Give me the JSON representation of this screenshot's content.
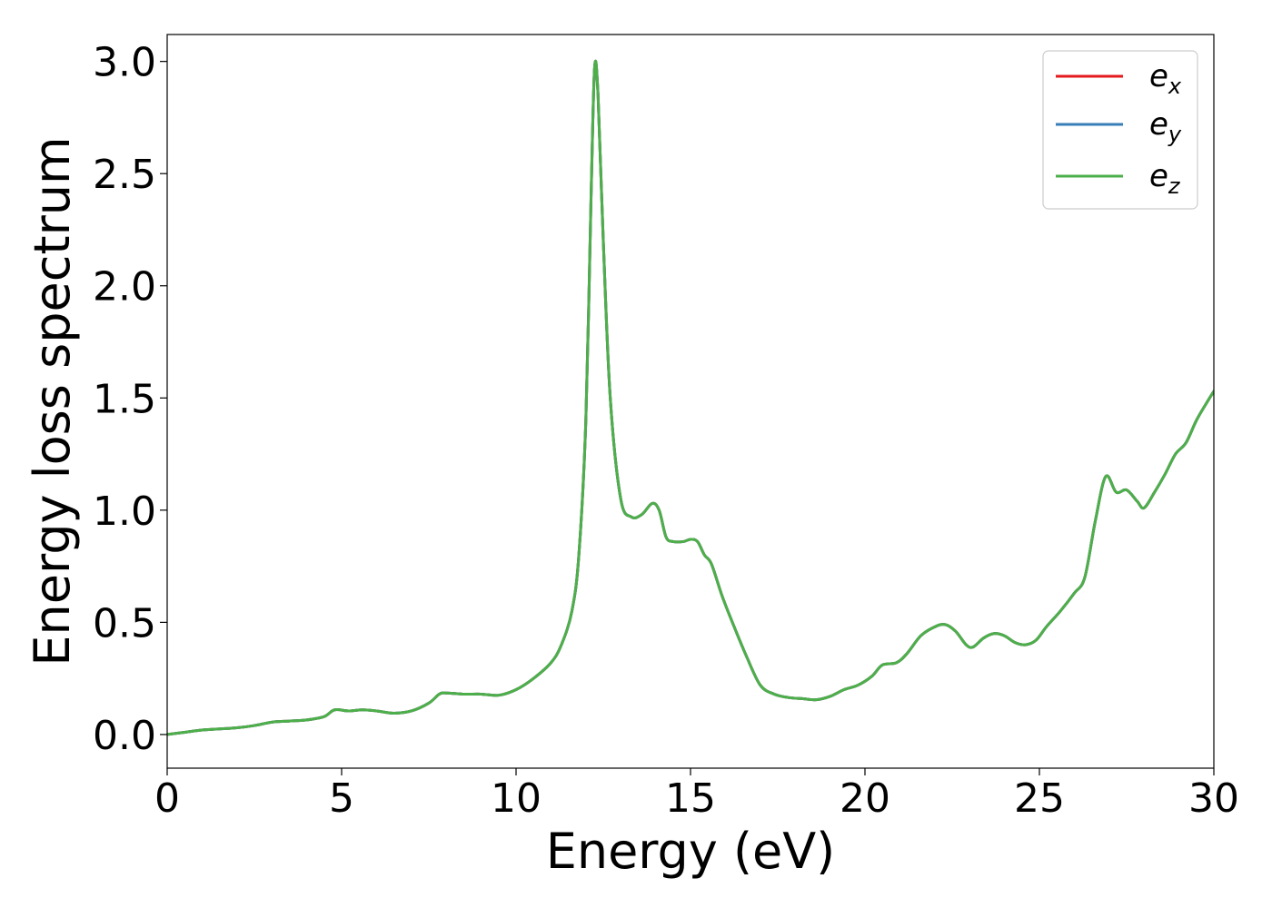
{
  "chart_data": {
    "type": "line",
    "title": "",
    "xlabel": "Energy (eV)",
    "ylabel": "Energy loss spectrum",
    "xlim": [
      0,
      30
    ],
    "ylim": [
      -0.15,
      3.12
    ],
    "xticks": [
      0,
      5,
      10,
      15,
      20,
      25,
      30
    ],
    "xtick_labels": [
      "0",
      "5",
      "10",
      "15",
      "20",
      "25",
      "30"
    ],
    "yticks": [
      0.0,
      0.5,
      1.0,
      1.5,
      2.0,
      2.5,
      3.0
    ],
    "ytick_labels": [
      "0.0",
      "0.5",
      "1.0",
      "1.5",
      "2.0",
      "2.5",
      "3.0"
    ],
    "grid": false,
    "legend": {
      "position": "top-right",
      "entries": [
        {
          "base": "e",
          "sub": "x"
        },
        {
          "base": "e",
          "sub": "y"
        },
        {
          "base": "e",
          "sub": "z"
        }
      ]
    },
    "x": [
      0,
      0.5,
      1.0,
      1.5,
      2.0,
      2.5,
      3.0,
      3.5,
      4.0,
      4.5,
      4.8,
      5.2,
      5.6,
      6.0,
      6.5,
      7.0,
      7.5,
      7.8,
      8.0,
      8.5,
      9.0,
      9.5,
      10.0,
      10.5,
      11.0,
      11.3,
      11.6,
      11.8,
      12.0,
      12.15,
      12.25,
      12.35,
      12.5,
      12.7,
      13.0,
      13.3,
      13.6,
      13.9,
      14.1,
      14.3,
      14.5,
      14.8,
      15.0,
      15.2,
      15.4,
      15.6,
      15.9,
      16.2,
      16.6,
      17.0,
      17.4,
      17.8,
      18.2,
      18.6,
      19.0,
      19.4,
      19.8,
      20.2,
      20.5,
      20.9,
      21.2,
      21.6,
      22.0,
      22.3,
      22.6,
      22.9,
      23.1,
      23.4,
      23.7,
      24.0,
      24.3,
      24.6,
      24.9,
      25.2,
      25.6,
      26.0,
      26.3,
      26.6,
      26.9,
      27.2,
      27.5,
      27.8,
      28.0,
      28.3,
      28.6,
      28.9,
      29.2,
      29.5,
      29.8,
      30.0
    ],
    "series": [
      {
        "name": "e_x",
        "color": "#e41a1c",
        "values": [
          0.0,
          0.01,
          0.02,
          0.025,
          0.03,
          0.04,
          0.055,
          0.06,
          0.065,
          0.08,
          0.11,
          0.105,
          0.11,
          0.105,
          0.095,
          0.105,
          0.14,
          0.18,
          0.185,
          0.18,
          0.18,
          0.175,
          0.2,
          0.25,
          0.32,
          0.4,
          0.55,
          0.8,
          1.4,
          2.4,
          2.97,
          2.85,
          2.2,
          1.5,
          1.05,
          0.97,
          0.98,
          1.03,
          1.0,
          0.88,
          0.86,
          0.86,
          0.87,
          0.86,
          0.8,
          0.76,
          0.62,
          0.5,
          0.35,
          0.22,
          0.18,
          0.165,
          0.16,
          0.155,
          0.17,
          0.2,
          0.22,
          0.26,
          0.31,
          0.32,
          0.36,
          0.44,
          0.48,
          0.49,
          0.46,
          0.4,
          0.39,
          0.43,
          0.45,
          0.44,
          0.41,
          0.4,
          0.42,
          0.48,
          0.55,
          0.63,
          0.7,
          0.95,
          1.15,
          1.08,
          1.09,
          1.04,
          1.01,
          1.08,
          1.16,
          1.25,
          1.3,
          1.4,
          1.48,
          1.53
        ]
      },
      {
        "name": "e_y",
        "color": "#377eb8",
        "values": [
          0.0,
          0.01,
          0.02,
          0.025,
          0.03,
          0.04,
          0.055,
          0.06,
          0.065,
          0.08,
          0.11,
          0.105,
          0.11,
          0.105,
          0.095,
          0.105,
          0.14,
          0.18,
          0.185,
          0.18,
          0.18,
          0.175,
          0.2,
          0.25,
          0.32,
          0.4,
          0.55,
          0.8,
          1.4,
          2.4,
          2.97,
          2.85,
          2.2,
          1.5,
          1.05,
          0.97,
          0.98,
          1.03,
          1.0,
          0.88,
          0.86,
          0.86,
          0.87,
          0.86,
          0.8,
          0.76,
          0.62,
          0.5,
          0.35,
          0.22,
          0.18,
          0.165,
          0.16,
          0.155,
          0.17,
          0.2,
          0.22,
          0.26,
          0.31,
          0.32,
          0.36,
          0.44,
          0.48,
          0.49,
          0.46,
          0.4,
          0.39,
          0.43,
          0.45,
          0.44,
          0.41,
          0.4,
          0.42,
          0.48,
          0.55,
          0.63,
          0.7,
          0.95,
          1.15,
          1.08,
          1.09,
          1.04,
          1.01,
          1.08,
          1.16,
          1.25,
          1.3,
          1.4,
          1.48,
          1.53
        ]
      },
      {
        "name": "e_z",
        "color": "#4daf4a",
        "values": [
          0.0,
          0.01,
          0.02,
          0.025,
          0.03,
          0.04,
          0.055,
          0.06,
          0.065,
          0.08,
          0.11,
          0.105,
          0.11,
          0.105,
          0.095,
          0.105,
          0.14,
          0.18,
          0.185,
          0.18,
          0.18,
          0.175,
          0.2,
          0.25,
          0.32,
          0.4,
          0.55,
          0.8,
          1.4,
          2.4,
          2.97,
          2.85,
          2.2,
          1.5,
          1.05,
          0.97,
          0.98,
          1.03,
          1.0,
          0.88,
          0.86,
          0.86,
          0.87,
          0.86,
          0.8,
          0.76,
          0.62,
          0.5,
          0.35,
          0.22,
          0.18,
          0.165,
          0.16,
          0.155,
          0.17,
          0.2,
          0.22,
          0.26,
          0.31,
          0.32,
          0.36,
          0.44,
          0.48,
          0.49,
          0.46,
          0.4,
          0.39,
          0.43,
          0.45,
          0.44,
          0.41,
          0.4,
          0.42,
          0.48,
          0.55,
          0.63,
          0.7,
          0.95,
          1.15,
          1.08,
          1.09,
          1.04,
          1.01,
          1.08,
          1.16,
          1.25,
          1.3,
          1.4,
          1.48,
          1.53
        ]
      }
    ]
  }
}
